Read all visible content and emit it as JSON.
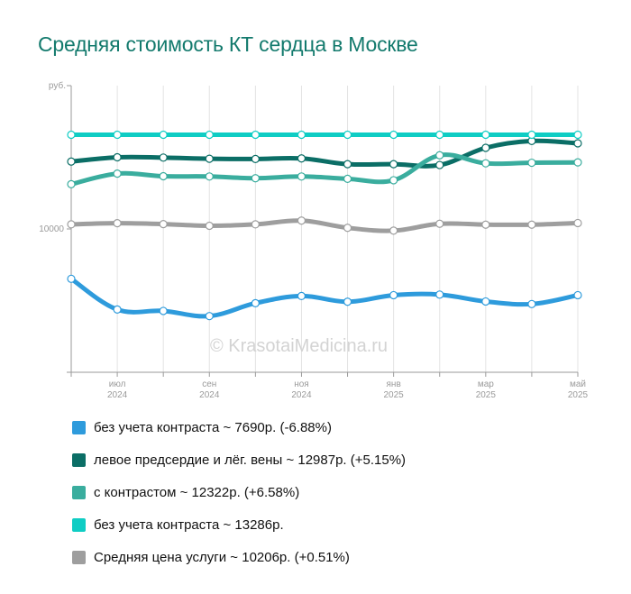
{
  "title": "Средняя стоимость КТ сердца в Москве",
  "watermark": "© KrasotaiMedicina.ru",
  "chart_data": {
    "type": "line",
    "y_unit_label": "руб.",
    "y_tick_labels": [
      {
        "value": 10000,
        "label": "10000"
      }
    ],
    "ylim": [
      5000,
      15000
    ],
    "x_count": 12,
    "x_tick_labels": [
      {
        "index": 1,
        "month": "июл",
        "year": "2024"
      },
      {
        "index": 3,
        "month": "сен",
        "year": "2024"
      },
      {
        "index": 5,
        "month": "ноя",
        "year": "2024"
      },
      {
        "index": 7,
        "month": "янв",
        "year": "2025"
      },
      {
        "index": 9,
        "month": "мар",
        "year": "2025"
      },
      {
        "index": 11,
        "month": "май",
        "year": "2025"
      }
    ],
    "grid": "vertical",
    "legend_position": "bottom",
    "series": [
      {
        "name": "без учета контраста ~ 7690р. (-6.88%)",
        "color": "#2e9bdc",
        "values": [
          8260,
          7190,
          7140,
          6960,
          7410,
          7660,
          7460,
          7690,
          7710,
          7470,
          7380,
          7690
        ]
      },
      {
        "name": "левое предсердие и лёг. вены ~ 12987р. (+5.15%)",
        "color": "#0b6e66",
        "values": [
          12350,
          12500,
          12490,
          12450,
          12440,
          12460,
          12260,
          12260,
          12230,
          12830,
          13070,
          12987
        ]
      },
      {
        "name": "с контрастом ~ 12322р. (+6.58%)",
        "color": "#3aad9e",
        "values": [
          11560,
          11930,
          11840,
          11830,
          11770,
          11830,
          11750,
          11700,
          12570,
          12290,
          12310,
          12322
        ]
      },
      {
        "name": "без учета контраста ~ 13286р.",
        "color": "#0fcdc4",
        "values": [
          13286,
          13286,
          13286,
          13286,
          13286,
          13286,
          13286,
          13286,
          13286,
          13286,
          13286,
          13286
        ]
      },
      {
        "name": "Средняя цена услуги ~ 10206р. (+0.51%)",
        "color": "#9e9e9e",
        "values": [
          10160,
          10200,
          10170,
          10110,
          10160,
          10290,
          10040,
          9940,
          10180,
          10150,
          10150,
          10206
        ]
      }
    ]
  }
}
